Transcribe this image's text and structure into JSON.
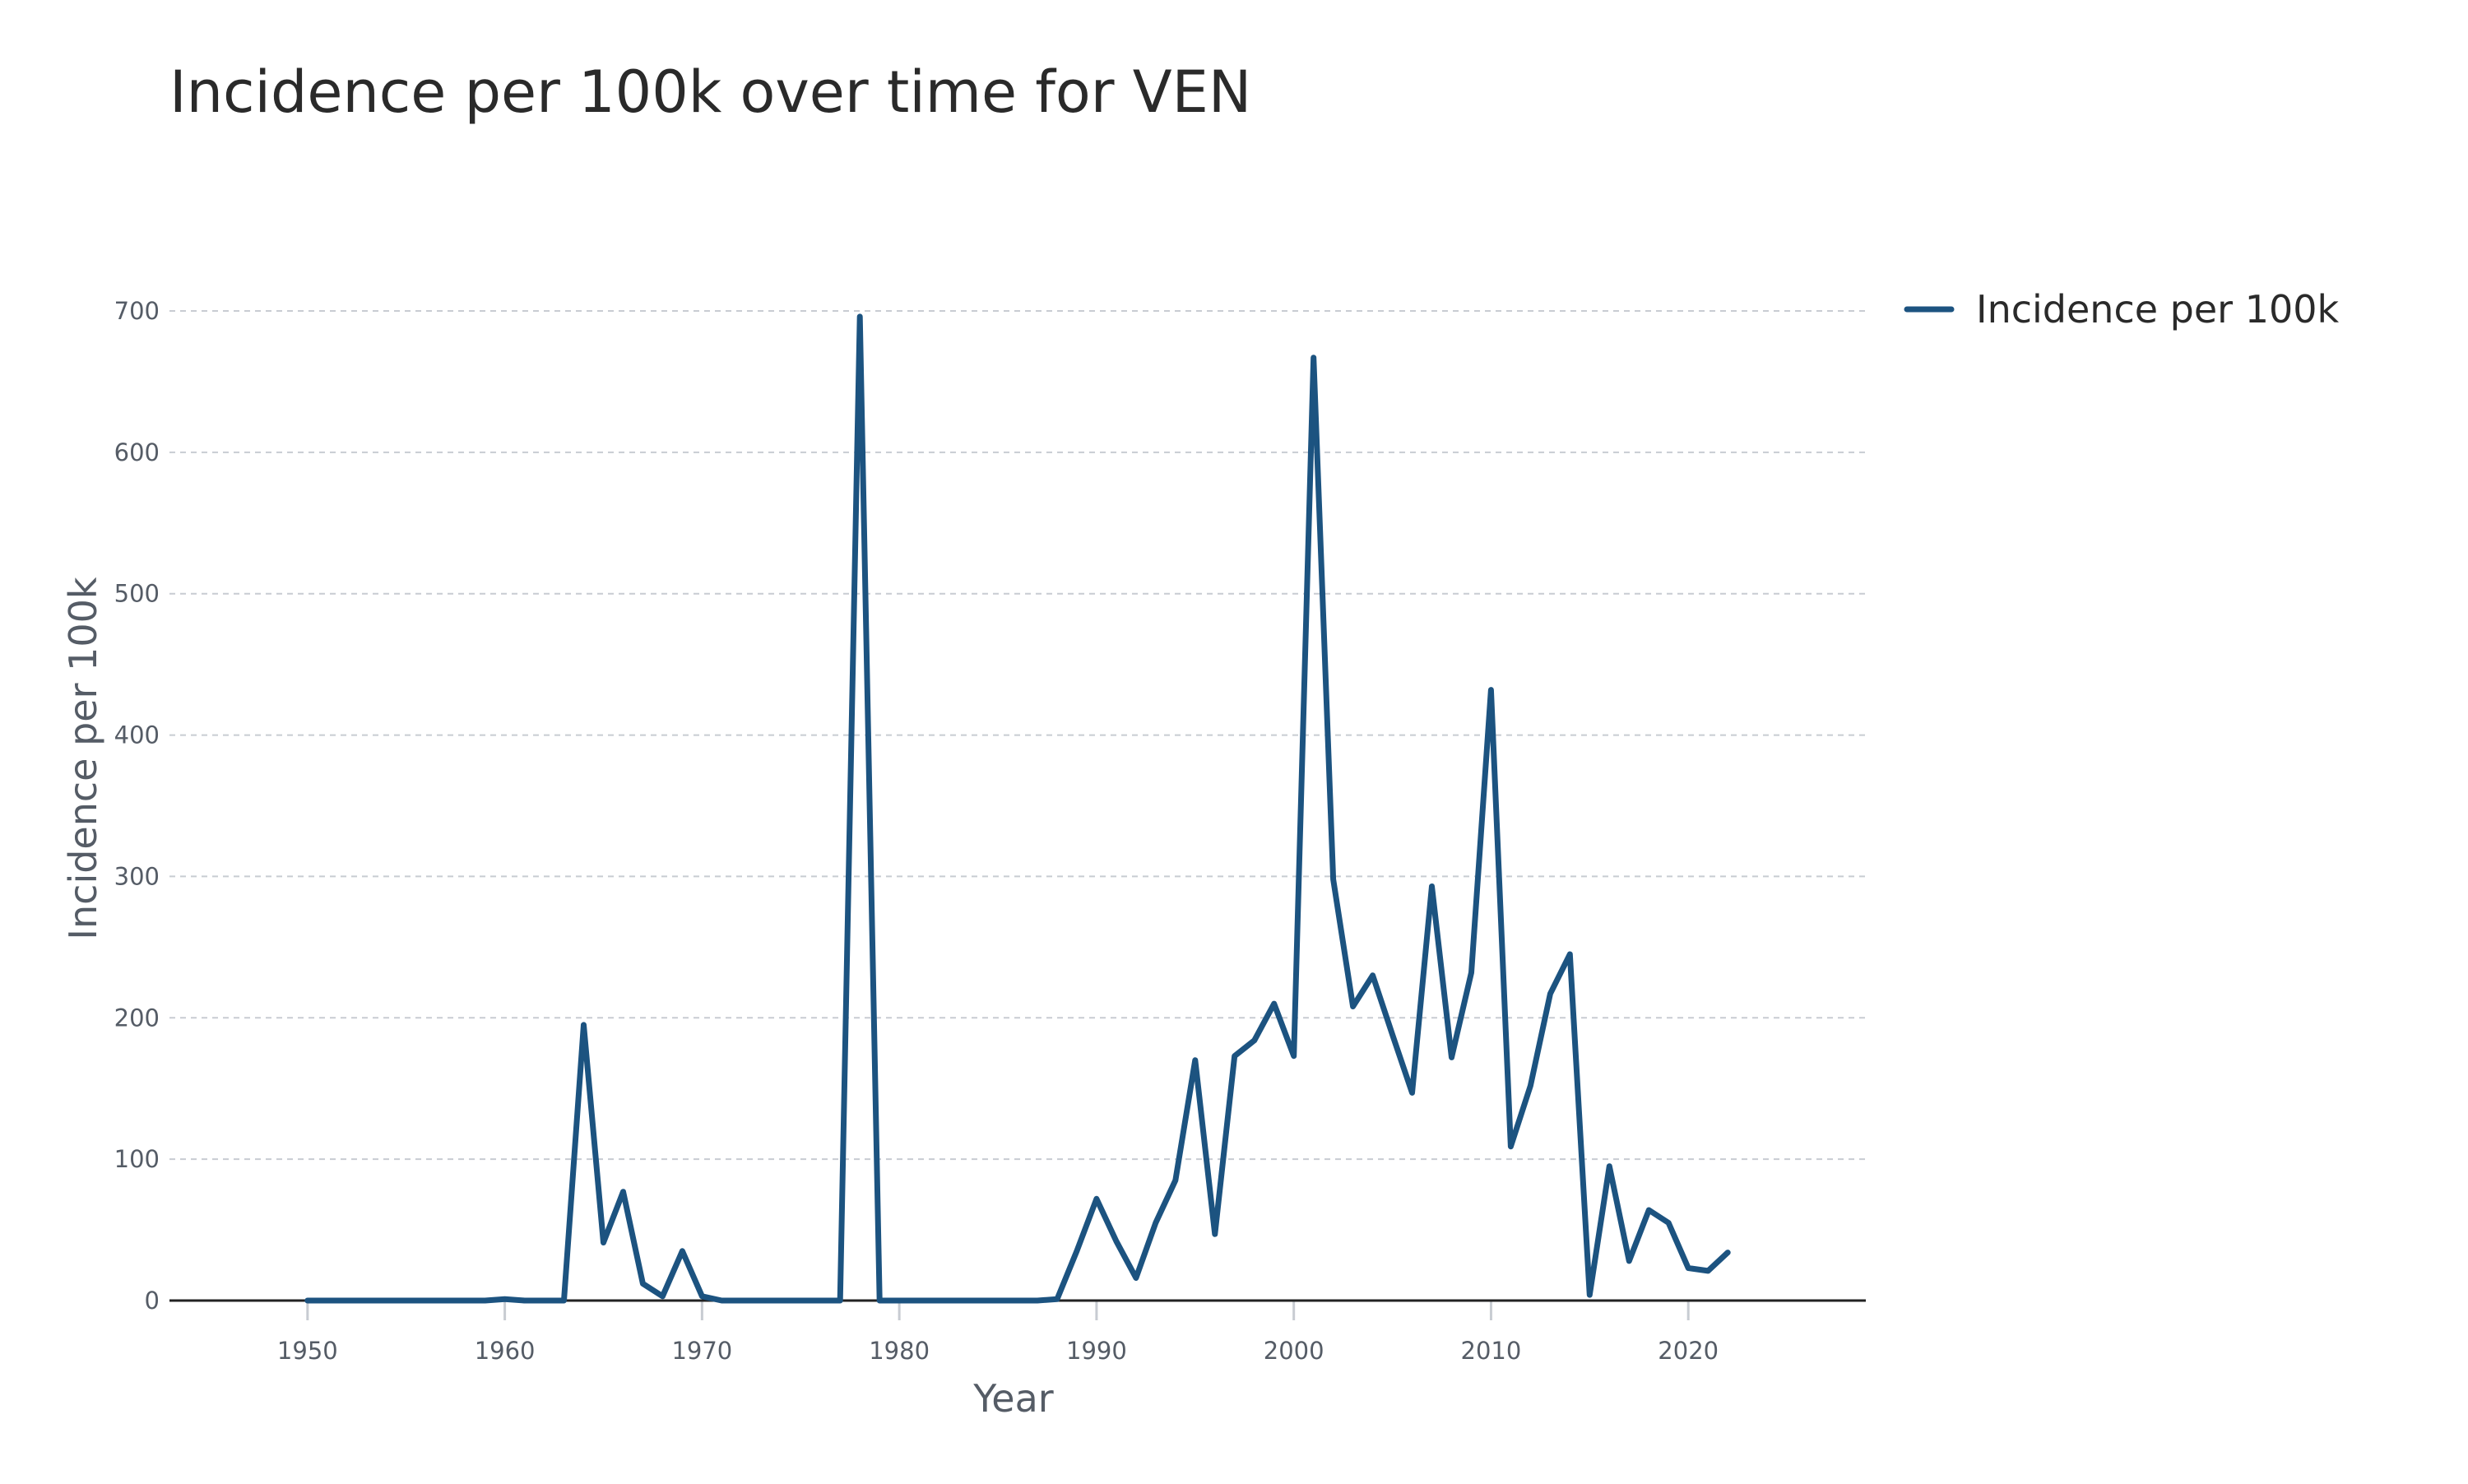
{
  "chart_data": {
    "type": "line",
    "title": "Incidence per 100k over time for VEN",
    "xlabel": "Year",
    "ylabel": "Incidence per 100k",
    "xlim": [
      1943,
      2029
    ],
    "ylim": [
      0,
      700
    ],
    "x_ticks": [
      "1950",
      "1960",
      "1970",
      "1980",
      "1990",
      "2000",
      "2010",
      "2020"
    ],
    "y_ticks": [
      "0",
      "100",
      "200",
      "300",
      "400",
      "500",
      "600",
      "700"
    ],
    "grid": true,
    "legend_position": "top-right",
    "series": [
      {
        "name": "Incidence per 100k",
        "color": "#1c5380",
        "x": [
          1950,
          1951,
          1952,
          1953,
          1954,
          1955,
          1956,
          1957,
          1958,
          1959,
          1960,
          1961,
          1962,
          1963,
          1964,
          1965,
          1966,
          1967,
          1968,
          1969,
          1970,
          1971,
          1972,
          1973,
          1974,
          1975,
          1976,
          1977,
          1978,
          1979,
          1980,
          1981,
          1982,
          1983,
          1984,
          1985,
          1986,
          1987,
          1988,
          1989,
          1990,
          1991,
          1992,
          1993,
          1994,
          1995,
          1996,
          1997,
          1998,
          1999,
          2000,
          2001,
          2002,
          2003,
          2004,
          2005,
          2006,
          2007,
          2008,
          2009,
          2010,
          2011,
          2012,
          2013,
          2014,
          2015,
          2016,
          2017,
          2018,
          2019,
          2020,
          2021,
          2022
        ],
        "y": [
          0,
          0,
          0,
          0,
          0,
          0,
          0,
          0,
          0,
          0,
          1,
          0,
          0,
          0,
          195,
          41,
          77,
          12,
          3,
          35,
          3,
          0,
          0,
          0,
          0,
          0,
          0,
          0,
          696,
          0,
          0,
          0,
          0,
          0,
          0,
          0,
          0,
          0,
          1,
          35,
          72,
          42,
          16,
          55,
          85,
          170,
          47,
          173,
          184,
          210,
          173,
          667,
          298,
          208,
          230,
          188,
          147,
          293,
          172,
          232,
          432,
          109,
          152,
          217,
          245,
          4,
          95,
          28,
          64,
          55,
          23,
          21,
          34
        ]
      }
    ]
  }
}
